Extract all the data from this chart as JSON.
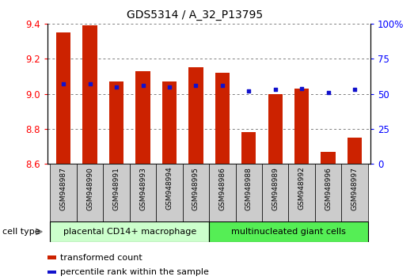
{
  "title": "GDS5314 / A_32_P13795",
  "samples": [
    "GSM948987",
    "GSM948990",
    "GSM948991",
    "GSM948993",
    "GSM948994",
    "GSM948995",
    "GSM948986",
    "GSM948988",
    "GSM948989",
    "GSM948992",
    "GSM948996",
    "GSM948997"
  ],
  "transformed_count": [
    9.35,
    9.39,
    9.07,
    9.13,
    9.07,
    9.15,
    9.12,
    8.78,
    9.0,
    9.03,
    8.67,
    8.75
  ],
  "percentile_rank": [
    57,
    57,
    55,
    56,
    55,
    56,
    56,
    52,
    53,
    54,
    51,
    53
  ],
  "ylim_left": [
    8.6,
    9.4
  ],
  "ylim_right": [
    0,
    100
  ],
  "yticks_left": [
    8.6,
    8.8,
    9.0,
    9.2,
    9.4
  ],
  "yticks_right": [
    0,
    25,
    50,
    75,
    100
  ],
  "ytick_right_labels": [
    "0",
    "25",
    "50",
    "75",
    "100%"
  ],
  "bar_color": "#cc2200",
  "dot_color": "#1111cc",
  "bar_width": 0.55,
  "group1_label": "placental CD14+ macrophage",
  "group2_label": "multinucleated giant cells",
  "group1_count": 6,
  "group2_count": 6,
  "cell_type_label": "cell type",
  "legend_bar_label": "transformed count",
  "legend_dot_label": "percentile rank within the sample",
  "group1_bg": "#ccffcc",
  "group2_bg": "#55ee55",
  "xlabel_bg": "#cccccc",
  "fig_bg": "#ffffff",
  "title_fontsize": 10,
  "tick_fontsize": 8.5,
  "label_fontsize": 6.5
}
